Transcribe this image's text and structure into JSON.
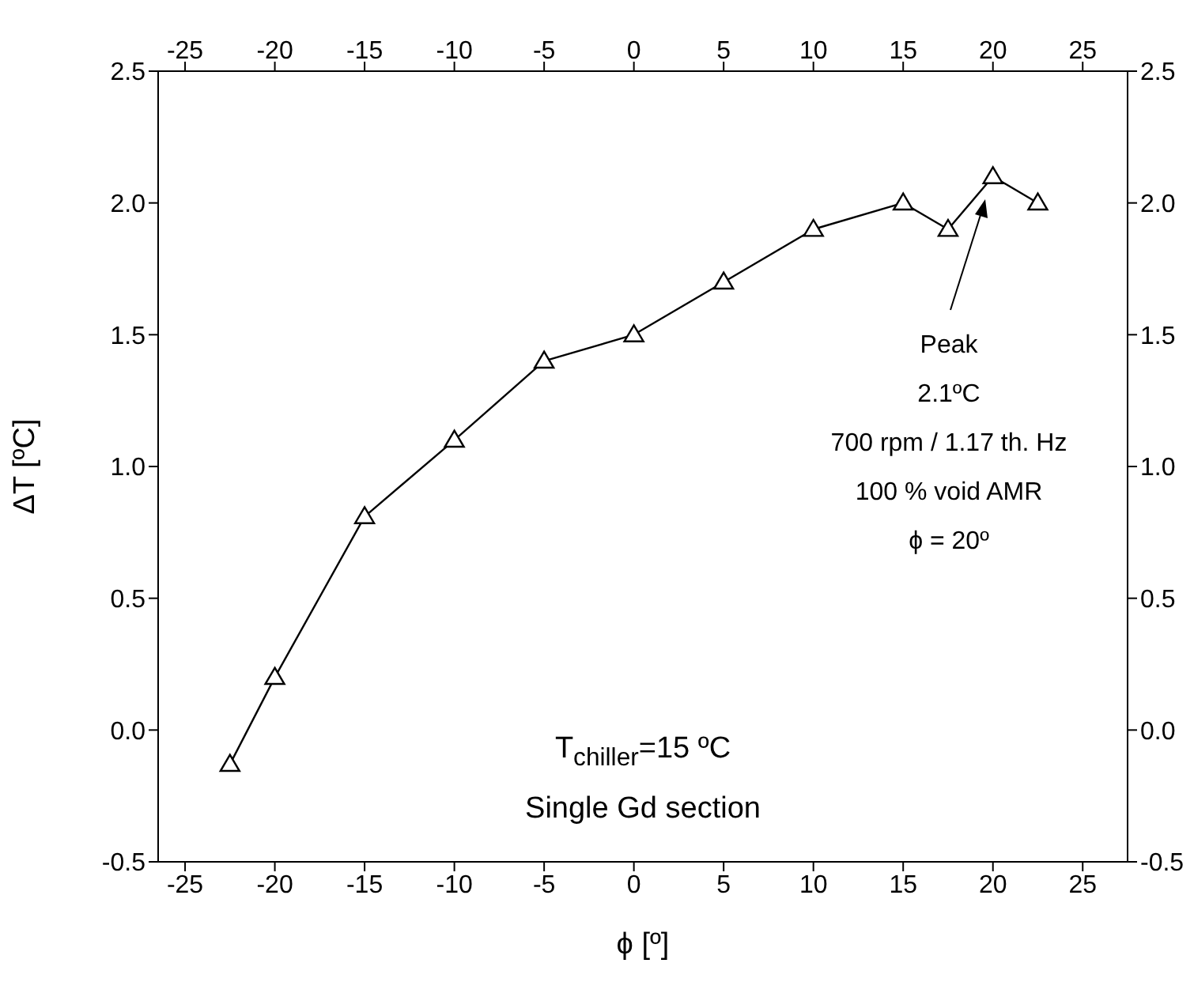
{
  "chart_data": {
    "type": "line",
    "xlabel": "ϕ [º]",
    "ylabel": "ΔT [ºC]",
    "marker": "triangle",
    "grid": false,
    "x": [
      -22.5,
      -20,
      -15,
      -10,
      -5,
      0,
      5,
      10,
      15,
      17.5,
      20,
      22.5
    ],
    "series": [
      {
        "color": "#000000",
        "values": [
          -0.13,
          0.2,
          0.81,
          1.1,
          1.4,
          1.5,
          1.7,
          1.9,
          2.0,
          1.9,
          2.1,
          2.0
        ]
      }
    ],
    "xlim": [
      -26.5,
      27.5
    ],
    "xticks": [
      -25,
      -20,
      -15,
      -10,
      -5,
      0,
      5,
      10,
      15,
      20,
      25
    ],
    "x2lim": [
      -26.5,
      27.5
    ],
    "x2ticks": [
      -25,
      -20,
      -15,
      -10,
      -5,
      0,
      5,
      10,
      15,
      20,
      25
    ],
    "ylim": [
      -0.5,
      2.5
    ],
    "yticks": [
      -0.5,
      {
        "value": 0,
        "label": "0.0"
      },
      0.5,
      {
        "value": 1,
        "label": "1.0"
      },
      1.5,
      {
        "value": 2,
        "label": "2.0"
      },
      2.5
    ],
    "y2lim": [
      -0.5,
      2.5
    ],
    "y2ticks": [
      -0.5,
      {
        "value": 0,
        "label": "0.0"
      },
      0.5,
      {
        "value": 1,
        "label": "1.0"
      },
      1.5,
      {
        "value": 2,
        "label": "2.0"
      },
      2.5
    ],
    "annotations": [
      "Peak\n2.1ºC\n700 rpm / 1.17 th. Hz\n100 % void AMR\nϕ = 20º",
      "T$_{chiller}$=15 ºC",
      "Single Gd section"
    ]
  }
}
